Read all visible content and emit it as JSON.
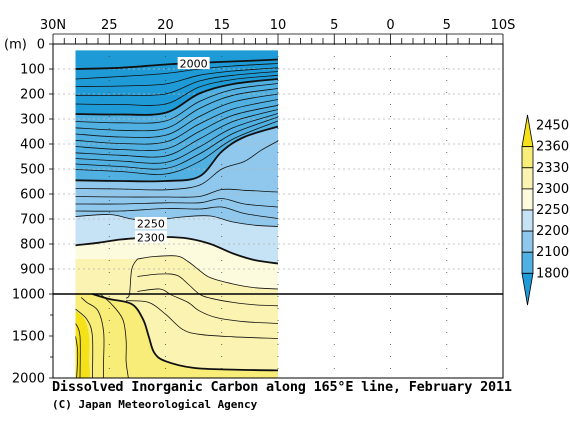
{
  "chart_data": {
    "type": "contour",
    "title": "Dissolved Inorganic Carbon along 165°E line, February 2011",
    "credit": "(C) Japan Meteorological Agency",
    "x_axis": {
      "ticks": [
        "30N",
        "25",
        "20",
        "15",
        "10",
        "5",
        "0",
        "5",
        "10S"
      ],
      "latitudes": [
        30,
        25,
        20,
        15,
        10,
        5,
        0,
        -5,
        -10
      ],
      "range": [
        30,
        -10
      ],
      "data_extent": [
        28,
        10
      ]
    },
    "y_axis": {
      "unit": "(m)",
      "upper_ticks": [
        0,
        100,
        200,
        300,
        400,
        500,
        600,
        700,
        800,
        900,
        1000
      ],
      "lower_ticks": [
        1000,
        1500,
        2000
      ],
      "break_depth": 1000,
      "range": [
        0,
        2000
      ],
      "upper_grid": true
    },
    "colorbar": {
      "levels": [
        2450,
        2360,
        2330,
        2300,
        2250,
        2200,
        2100,
        1800
      ],
      "colors": [
        "#f5e11a",
        "#f7ed78",
        "#fbf3b1",
        "#fdfbdd",
        "#c6e2f5",
        "#8fc8ec",
        "#50b0e2",
        "#1e9ad6"
      ]
    },
    "labeled_contours": [
      {
        "label": "2000",
        "latitude": 17.5,
        "depth": 80
      },
      {
        "label": "2250",
        "latitude": 21.3,
        "depth": 720
      },
      {
        "label": "2300",
        "latitude": 21.3,
        "depth": 775
      }
    ],
    "contours": [
      {
        "value": 2000,
        "bold": true,
        "points": [
          [
            28,
            100
          ],
          [
            24,
            95
          ],
          [
            20,
            82
          ],
          [
            17,
            75
          ],
          [
            13,
            68
          ],
          [
            10,
            62
          ]
        ]
      },
      {
        "value": 2020,
        "bold": false,
        "points": [
          [
            28,
            140
          ],
          [
            24,
            130
          ],
          [
            20,
            118
          ],
          [
            17,
            100
          ],
          [
            14,
            88
          ],
          [
            10,
            78
          ]
        ]
      },
      {
        "value": 2040,
        "bold": false,
        "points": [
          [
            28,
            170
          ],
          [
            24,
            168
          ],
          [
            20,
            160
          ],
          [
            17,
            125
          ],
          [
            14,
            108
          ],
          [
            10,
            95
          ]
        ]
      },
      {
        "value": 2060,
        "bold": false,
        "points": [
          [
            28,
            205
          ],
          [
            24,
            205
          ],
          [
            20,
            200
          ],
          [
            17,
            148
          ],
          [
            14,
            125
          ],
          [
            10,
            110
          ]
        ]
      },
      {
        "value": 2080,
        "bold": false,
        "points": [
          [
            28,
            240
          ],
          [
            24,
            242
          ],
          [
            20,
            240
          ],
          [
            17,
            172
          ],
          [
            14,
            142
          ],
          [
            10,
            125
          ]
        ]
      },
      {
        "value": 2100,
        "bold": true,
        "points": [
          [
            28,
            280
          ],
          [
            24,
            282
          ],
          [
            20,
            275
          ],
          [
            17,
            198
          ],
          [
            14,
            160
          ],
          [
            10,
            140
          ]
        ]
      },
      {
        "value": 2110,
        "bold": false,
        "points": [
          [
            28,
            310
          ],
          [
            24,
            315
          ],
          [
            20,
            308
          ],
          [
            17,
            230
          ],
          [
            14,
            182
          ],
          [
            10,
            158
          ]
        ]
      },
      {
        "value": 2120,
        "bold": false,
        "points": [
          [
            28,
            335
          ],
          [
            24,
            345
          ],
          [
            20,
            338
          ],
          [
            17,
            258
          ],
          [
            14,
            205
          ],
          [
            10,
            178
          ]
        ]
      },
      {
        "value": 2130,
        "bold": false,
        "points": [
          [
            28,
            360
          ],
          [
            24,
            372
          ],
          [
            20,
            365
          ],
          [
            17,
            290
          ],
          [
            14,
            232
          ],
          [
            10,
            200
          ]
        ]
      },
      {
        "value": 2140,
        "bold": false,
        "points": [
          [
            28,
            385
          ],
          [
            24,
            398
          ],
          [
            20,
            392
          ],
          [
            17,
            320
          ],
          [
            14,
            260
          ],
          [
            10,
            222
          ]
        ]
      },
      {
        "value": 2150,
        "bold": false,
        "points": [
          [
            28,
            410
          ],
          [
            24,
            422
          ],
          [
            20,
            420
          ],
          [
            17,
            350
          ],
          [
            14,
            285
          ],
          [
            10,
            245
          ]
        ]
      },
      {
        "value": 2160,
        "bold": false,
        "points": [
          [
            28,
            435
          ],
          [
            24,
            445
          ],
          [
            20,
            448
          ],
          [
            17,
            380
          ],
          [
            14,
            310
          ],
          [
            10,
            262
          ]
        ]
      },
      {
        "value": 2170,
        "bold": false,
        "points": [
          [
            28,
            458
          ],
          [
            24,
            468
          ],
          [
            20,
            474
          ],
          [
            17,
            412
          ],
          [
            14,
            335
          ],
          [
            10,
            278
          ]
        ]
      },
      {
        "value": 2180,
        "bold": false,
        "points": [
          [
            28,
            480
          ],
          [
            24,
            490
          ],
          [
            20,
            498
          ],
          [
            17,
            440
          ],
          [
            14,
            358
          ],
          [
            10,
            292
          ]
        ]
      },
      {
        "value": 2190,
        "bold": false,
        "points": [
          [
            28,
            502
          ],
          [
            24,
            510
          ],
          [
            20,
            520
          ],
          [
            17,
            470
          ],
          [
            14,
            380
          ],
          [
            10,
            308
          ]
        ]
      },
      {
        "value": 2200,
        "bold": true,
        "points": [
          [
            28,
            545
          ],
          [
            24,
            548
          ],
          [
            20,
            548
          ],
          [
            17,
            530
          ],
          [
            15,
            430
          ],
          [
            13,
            372
          ],
          [
            10,
            330
          ]
        ]
      },
      {
        "value": 2210,
        "bold": false,
        "points": [
          [
            28,
            578
          ],
          [
            24,
            580
          ],
          [
            20,
            583
          ],
          [
            17,
            565
          ],
          [
            15,
            500
          ],
          [
            13,
            470
          ],
          [
            11.5,
            425
          ],
          [
            10,
            388
          ]
        ]
      },
      {
        "value": 2220,
        "bold": false,
        "points": [
          [
            28,
            610
          ],
          [
            24,
            612
          ],
          [
            20,
            612
          ],
          [
            17,
            610
          ],
          [
            15,
            582
          ],
          [
            13,
            585
          ],
          [
            11,
            590
          ],
          [
            10,
            592
          ]
        ]
      },
      {
        "value": 2230,
        "bold": false,
        "points": [
          [
            28,
            640
          ],
          [
            24,
            640
          ],
          [
            20,
            635
          ],
          [
            17,
            635
          ],
          [
            15,
            618
          ],
          [
            13,
            640
          ],
          [
            10,
            652
          ]
        ]
      },
      {
        "value": 2240,
        "bold": false,
        "points": [
          [
            28,
            668
          ],
          [
            24,
            668
          ],
          [
            20,
            658
          ],
          [
            17,
            660
          ],
          [
            15,
            652
          ],
          [
            13,
            678
          ],
          [
            10,
            698
          ]
        ]
      },
      {
        "value": 2250,
        "bold": false,
        "points": [
          [
            28,
            690
          ],
          [
            25,
            682
          ],
          [
            23,
            700
          ],
          [
            21,
            712
          ],
          [
            20,
            700
          ],
          [
            18,
            690
          ],
          [
            16,
            688
          ],
          [
            14,
            712
          ],
          [
            12,
            725
          ],
          [
            10,
            730
          ]
        ]
      },
      {
        "value": 2300,
        "bold": true,
        "points": [
          [
            28,
            805
          ],
          [
            26,
            795
          ],
          [
            24,
            782
          ],
          [
            22,
            775
          ],
          [
            20,
            772
          ],
          [
            18,
            778
          ],
          [
            16,
            800
          ],
          [
            14,
            838
          ],
          [
            12,
            865
          ],
          [
            10,
            878
          ]
        ]
      },
      {
        "value": 2305,
        "bold": false,
        "points": [
          [
            22.5,
            860
          ],
          [
            21,
            850
          ],
          [
            19,
            848
          ],
          [
            18,
            870
          ],
          [
            17,
            905
          ],
          [
            16,
            935
          ],
          [
            14,
            960
          ],
          [
            12,
            975
          ],
          [
            10,
            980
          ]
        ]
      },
      {
        "value": 2315,
        "bold": false,
        "points": [
          [
            22.5,
            930
          ],
          [
            20.5,
            920
          ],
          [
            19,
            925
          ],
          [
            18,
            960
          ],
          [
            17,
            1000
          ],
          [
            16,
            1050
          ],
          [
            14,
            1100
          ],
          [
            12,
            1130
          ],
          [
            10,
            1140
          ]
        ]
      },
      {
        "value": 2320,
        "bold": false,
        "points": [
          [
            22.5,
            990
          ],
          [
            20.5,
            980
          ],
          [
            19.5,
            1010
          ],
          [
            18,
            1100
          ],
          [
            17,
            1200
          ],
          [
            15.5,
            1280
          ],
          [
            13,
            1330
          ],
          [
            10,
            1350
          ]
        ]
      },
      {
        "value": 2325,
        "bold": false,
        "points": [
          [
            23.5,
            1080
          ],
          [
            21.5,
            1100
          ],
          [
            20,
            1240
          ],
          [
            18.5,
            1420
          ],
          [
            17,
            1480
          ],
          [
            14,
            1510
          ],
          [
            10,
            1530
          ]
        ]
      },
      {
        "value": 2330,
        "bold": true,
        "points": [
          [
            26.5,
            1000
          ],
          [
            25,
            1060
          ],
          [
            23,
            1120
          ],
          [
            22,
            1300
          ],
          [
            21.5,
            1500
          ],
          [
            21,
            1700
          ],
          [
            20,
            1800
          ],
          [
            17.5,
            1880
          ],
          [
            14,
            1900
          ],
          [
            10,
            1910
          ]
        ]
      },
      {
        "value": 2335,
        "bold": false,
        "points": [
          [
            25.8,
            1000
          ],
          [
            24.8,
            1120
          ],
          [
            23.8,
            1300
          ],
          [
            23.5,
            1550
          ],
          [
            23.5,
            1800
          ],
          [
            23.3,
            2000
          ]
        ]
      },
      {
        "value": 2340,
        "bold": false,
        "points": [
          [
            27.5,
            1040
          ],
          [
            27,
            1100
          ],
          [
            26,
            1200
          ],
          [
            25.5,
            1450
          ],
          [
            25.5,
            1800
          ],
          [
            25.5,
            2000
          ]
        ]
      },
      {
        "value": 2345,
        "bold": false,
        "points": [
          [
            28,
            1180
          ],
          [
            27,
            1300
          ],
          [
            26.5,
            1500
          ],
          [
            26.5,
            2000
          ]
        ]
      },
      {
        "value": 2350,
        "bold": false,
        "points": [
          [
            28,
            1350
          ],
          [
            27.6,
            1500
          ],
          [
            27.6,
            2000
          ]
        ]
      }
    ],
    "fill_bands": [
      {
        "color": "#1e9ad6",
        "top": "surface",
        "bottom": 2100
      },
      {
        "color": "#50b0e2",
        "top": 2100,
        "bottom": 2200
      },
      {
        "color": "#8fc8ec",
        "top": 2200,
        "bottom": 2250
      },
      {
        "color": "#c6e2f5",
        "top": 2250,
        "bottom": 2300
      },
      {
        "color": "#fdfbdd",
        "top": 2300,
        "bottom": 2305
      },
      {
        "color": "#fbf3b1",
        "top": 2305,
        "bottom": 2330
      },
      {
        "color": "#f7ed78",
        "top": 2330,
        "bottom": 2345
      },
      {
        "color": "#f5e11a",
        "top": 2345,
        "bottom": "bottom"
      }
    ],
    "data_top_depth": 25
  }
}
